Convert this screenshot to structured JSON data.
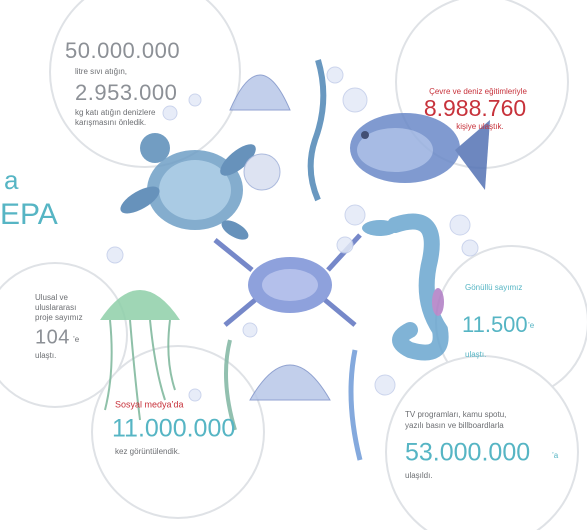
{
  "heading_fragments": [
    "a",
    "EPA"
  ],
  "waste": {
    "liquid_amount": "50.000.000",
    "liquid_label": "litre sıvı atığın,",
    "solid_amount": "2.953.000",
    "solid_label": [
      "kg katı atığın denizlere",
      "karışmasını önledik."
    ]
  },
  "education": {
    "intro": "Çevre ve deniz eğitimleriyle",
    "amount": "8.988.760",
    "outro": "kişiye ulaştık."
  },
  "volunteers": {
    "intro": "Gönüllü sayımız",
    "amount": "11.500",
    "suffix": "’e",
    "outro": "ulaştı."
  },
  "projects": {
    "intro": [
      "Ulusal ve",
      "uluslararası",
      "proje sayımız"
    ],
    "amount": "104",
    "suffix": "’e",
    "outro": "ulaştı."
  },
  "social": {
    "intro": "Sosyal medya’da",
    "amount": "11.000.000",
    "outro": "kez görüntülendik."
  },
  "media": {
    "intro": [
      "TV programları, kamu spotu,",
      "yazılı basın ve billboardlarla"
    ],
    "amount": "53.000.000",
    "suffix": "’a",
    "outro": "ulaşıldı."
  }
}
